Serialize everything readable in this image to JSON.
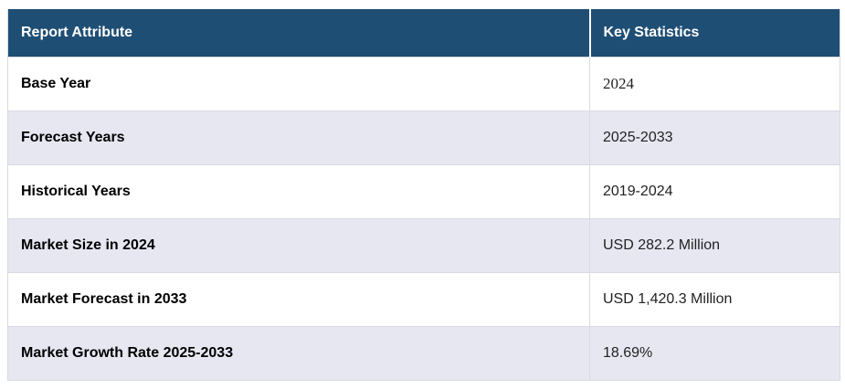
{
  "table": {
    "headers": {
      "attribute": "Report Attribute",
      "statistics": "Key Statistics"
    },
    "rows": [
      {
        "attribute": "Base Year",
        "value": "2024",
        "serif": true
      },
      {
        "attribute": "Forecast Years",
        "value": "2025-2033",
        "serif": false
      },
      {
        "attribute": "Historical Years",
        "value": "2019-2024",
        "serif": false
      },
      {
        "attribute": "Market Size in 2024",
        "value": "USD 282.2 Million",
        "serif": false
      },
      {
        "attribute": "Market Forecast in 2033",
        "value": "USD 1,420.3 Million",
        "serif": false
      },
      {
        "attribute": "Market Growth Rate 2025-2033",
        "value": "18.69%",
        "serif": false
      }
    ],
    "colors": {
      "header_bg": "#1f4e74",
      "header_text": "#ffffff",
      "alt_row_bg": "#e6e7f1",
      "row_bg": "#ffffff",
      "border": "#d9dae3",
      "label_text": "#000000",
      "value_text": "#222222"
    }
  }
}
